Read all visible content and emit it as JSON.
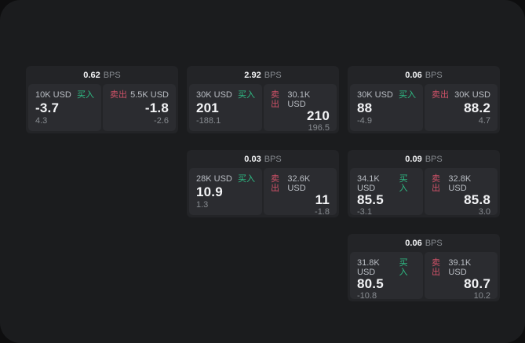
{
  "app": {
    "name": "spread-quote-monitor"
  },
  "theme": {
    "background": "#0e0e0f",
    "surface": "#1b1c1e",
    "card": "#232427",
    "panel": "#2b2c30",
    "text_primary": "#f3f4f6",
    "text_secondary": "#b9bdc3",
    "text_muted": "#878b90",
    "buy_green": "#2ebd85",
    "sell_red": "#cf5268"
  },
  "labels": {
    "buy": "买入",
    "sell": "卖出",
    "bps_unit": "BPS"
  },
  "cards": [
    {
      "bps": "0.62",
      "grid": {
        "col": 1,
        "row": 1
      },
      "buy": {
        "amount": "10K USD",
        "price": "-3.7",
        "delta": "4.3"
      },
      "sell": {
        "amount": "5.5K USD",
        "price": "-1.8",
        "delta": "-2.6"
      }
    },
    {
      "bps": "2.92",
      "grid": {
        "col": 2,
        "row": 1
      },
      "buy": {
        "amount": "30K USD",
        "price": "201",
        "delta": "-188.1"
      },
      "sell": {
        "amount": "30.1K USD",
        "price": "210",
        "delta": "196.5"
      }
    },
    {
      "bps": "0.06",
      "grid": {
        "col": 3,
        "row": 1
      },
      "buy": {
        "amount": "30K USD",
        "price": "88",
        "delta": "-4.9"
      },
      "sell": {
        "amount": "30K USD",
        "price": "88.2",
        "delta": "4.7"
      }
    },
    {
      "bps": "0.03",
      "grid": {
        "col": 2,
        "row": 2
      },
      "buy": {
        "amount": "28K USD",
        "price": "10.9",
        "delta": "1.3"
      },
      "sell": {
        "amount": "32.6K USD",
        "price": "11",
        "delta": "-1.8"
      }
    },
    {
      "bps": "0.09",
      "grid": {
        "col": 3,
        "row": 2
      },
      "buy": {
        "amount": "34.1K USD",
        "price": "85.5",
        "delta": "-3.1"
      },
      "sell": {
        "amount": "32.8K USD",
        "price": "85.8",
        "delta": "3.0"
      }
    },
    {
      "bps": "0.06",
      "grid": {
        "col": 3,
        "row": 3
      },
      "buy": {
        "amount": "31.8K USD",
        "price": "80.5",
        "delta": "-10.8"
      },
      "sell": {
        "amount": "39.1K USD",
        "price": "80.7",
        "delta": "10.2"
      }
    }
  ]
}
